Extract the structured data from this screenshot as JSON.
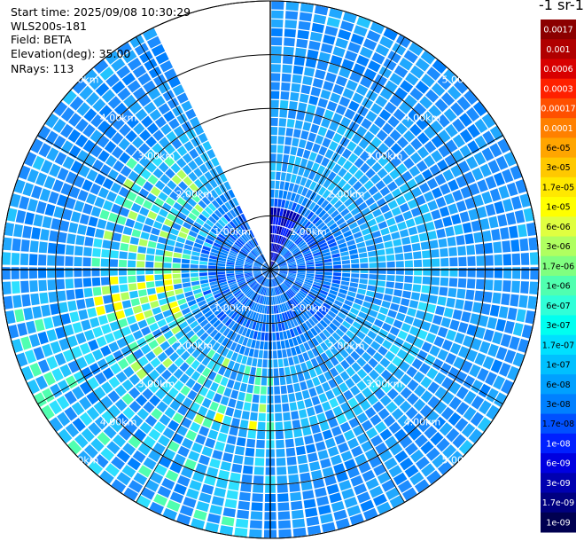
{
  "header": {
    "start_time_label": "Start time",
    "start_time": "2025/09/08 10:30:29",
    "instrument": "WLS200s-181",
    "field_label": "Field",
    "field": "BETA",
    "elevation_label": "Elevation(deg)",
    "elevation": "35.00",
    "nrays_label": "NRays",
    "nrays": "113"
  },
  "colorbar": {
    "title": "-1 sr-1",
    "levels": [
      "0.0017",
      "0.001",
      "0.0006",
      "0.0003",
      "0.00017",
      "0.0001",
      "6e-05",
      "3e-05",
      "1.7e-05",
      "1e-05",
      "6e-06",
      "3e-06",
      "1.7e-06",
      "1e-06",
      "6e-07",
      "3e-07",
      "1.7e-07",
      "1e-07",
      "6e-08",
      "3e-08",
      "1.7e-08",
      "1e-08",
      "6e-09",
      "3e-09",
      "1.7e-09",
      "1e-09"
    ],
    "colors": [
      "#8b0000",
      "#b00000",
      "#d80000",
      "#ff2000",
      "#ff5000",
      "#ff8000",
      "#ffa500",
      "#ffc800",
      "#ffe800",
      "#ffff00",
      "#e0ff40",
      "#b0ff60",
      "#80ff80",
      "#50ffb0",
      "#30ffd8",
      "#00fff0",
      "#00e0ff",
      "#00c0ff",
      "#00a0ff",
      "#0080ff",
      "#0050ff",
      "#0020ff",
      "#0000e0",
      "#0000b0",
      "#000080",
      "#000050"
    ],
    "label_colors": [
      "#ffffff",
      "#ffffff",
      "#ffffff",
      "#ffffff",
      "#ffffff",
      "#ffffff",
      "#000000",
      "#000000",
      "#000000",
      "#000000",
      "#000000",
      "#000000",
      "#000000",
      "#000000",
      "#000000",
      "#000000",
      "#000000",
      "#000000",
      "#000000",
      "#000000",
      "#000000",
      "#ffffff",
      "#ffffff",
      "#ffffff",
      "#ffffff",
      "#ffffff"
    ]
  },
  "chart_data": {
    "type": "heatmap",
    "projection": "polar PPI scan",
    "range_ring_labels": [
      "1.00km",
      "2.00km",
      "3.00km",
      "4.00km",
      "5.00km"
    ],
    "range_rings_km": [
      1,
      2,
      3,
      4,
      5
    ],
    "max_range_km": 5.0,
    "nrays": 113,
    "missing_sector_deg": [
      334,
      360
    ],
    "beta_range": [
      1e-09,
      0.0017
    ],
    "description_values": "backscatter field mostly 3e-08 to 1.7e-07, with patches near 1.7e-06 to 1.7e-05 west and south-west at 1.5-3 km; low values near 1e-09 to 3e-09 close to centre toward north"
  }
}
